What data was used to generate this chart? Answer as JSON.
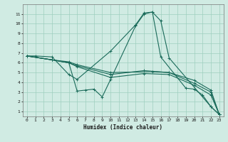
{
  "xlabel": "Humidex (Indice chaleur)",
  "ylabel": "",
  "bg_color": "#d0ebe3",
  "grid_color": "#9ecfbe",
  "line_color": "#1a6b5a",
  "xlim": [
    -0.5,
    23.5
  ],
  "ylim": [
    0.5,
    12.0
  ],
  "xticks": [
    0,
    1,
    2,
    3,
    4,
    5,
    6,
    7,
    8,
    9,
    10,
    11,
    12,
    13,
    14,
    15,
    16,
    17,
    18,
    19,
    20,
    21,
    22,
    23
  ],
  "yticks": [
    1,
    2,
    3,
    4,
    5,
    6,
    7,
    8,
    9,
    10,
    11
  ],
  "lines": [
    {
      "x": [
        0,
        1,
        3,
        5,
        6,
        10,
        13,
        14,
        15,
        16,
        17,
        22,
        23
      ],
      "y": [
        6.7,
        6.7,
        6.6,
        4.8,
        4.3,
        7.2,
        9.9,
        11.1,
        11.2,
        10.3,
        6.5,
        1.5,
        0.7
      ]
    },
    {
      "x": [
        0,
        3,
        5,
        6,
        10,
        15,
        17,
        20,
        22,
        23
      ],
      "y": [
        6.7,
        6.3,
        6.1,
        5.8,
        5.0,
        5.1,
        5.0,
        4.2,
        3.2,
        0.7
      ]
    },
    {
      "x": [
        0,
        3,
        5,
        6,
        10,
        14,
        17,
        20,
        22,
        23
      ],
      "y": [
        6.7,
        6.3,
        6.0,
        5.7,
        4.8,
        5.2,
        5.0,
        3.9,
        3.0,
        0.7
      ]
    },
    {
      "x": [
        0,
        3,
        5,
        6,
        10,
        14,
        17,
        20,
        22,
        23
      ],
      "y": [
        6.7,
        6.3,
        6.0,
        5.6,
        4.5,
        4.9,
        4.8,
        3.7,
        2.7,
        0.7
      ]
    },
    {
      "x": [
        0,
        3,
        5,
        6,
        7,
        8,
        9,
        10,
        13,
        14,
        15,
        16,
        19,
        20,
        21,
        22,
        23
      ],
      "y": [
        6.7,
        6.3,
        6.0,
        3.1,
        3.2,
        3.3,
        2.5,
        4.3,
        9.8,
        11.0,
        11.2,
        6.6,
        3.4,
        3.3,
        2.7,
        1.5,
        0.7
      ]
    }
  ]
}
